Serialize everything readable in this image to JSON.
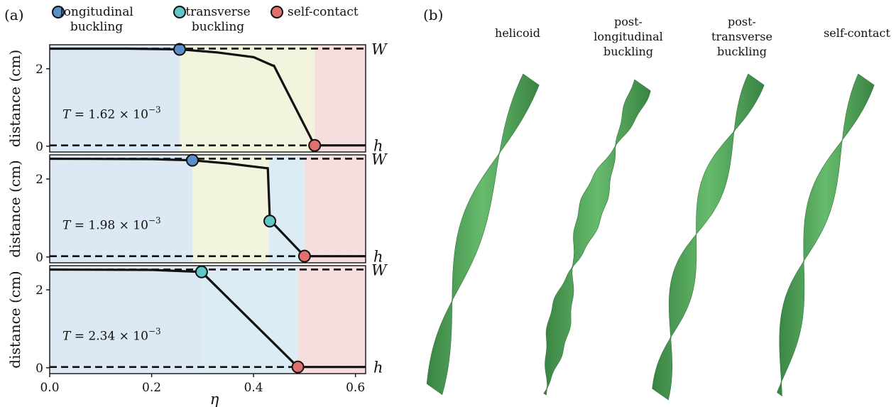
{
  "panel_labels": {
    "a": "(a)",
    "b": "(b)"
  },
  "legend": [
    {
      "label_lines": [
        "longitudinal",
        "buckling"
      ],
      "color": "#5b8fc9"
    },
    {
      "label_lines": [
        "transverse",
        "buckling"
      ],
      "color": "#5fc7c7"
    },
    {
      "label_lines": [
        "self-contact"
      ],
      "color": "#e07070"
    }
  ],
  "region_colors": {
    "blue": "#dce9f4",
    "yellow": "#f3f4dd",
    "cyan": "#dcecf5",
    "red": "#f6dede"
  },
  "axes": {
    "ylabel": "distance (cm)",
    "xlabel": "η",
    "xticks": [
      "0.0",
      "0.2",
      "0.4",
      "0.6"
    ],
    "yticks": [
      "0",
      "2"
    ],
    "W_label": "W",
    "h_label": "h"
  },
  "chart_data": [
    {
      "type": "line",
      "T_prefix": "T = 1.62 × 10",
      "T_exp": "−3",
      "xlim": [
        0,
        0.62
      ],
      "ylim": [
        -0.15,
        2.62
      ],
      "W": 2.52,
      "h": 0.02,
      "regions": [
        {
          "from": 0,
          "to": 0.255,
          "color": "blue"
        },
        {
          "from": 0.255,
          "to": 0.52,
          "color": "yellow"
        },
        {
          "from": 0.52,
          "to": 0.62,
          "color": "red"
        }
      ],
      "curve": [
        [
          0,
          2.52
        ],
        [
          0.15,
          2.52
        ],
        [
          0.255,
          2.5
        ],
        [
          0.33,
          2.42
        ],
        [
          0.4,
          2.3
        ],
        [
          0.438,
          2.08
        ],
        [
          0.44,
          2.08
        ],
        [
          0.52,
          0.02
        ],
        [
          0.62,
          0.02
        ]
      ],
      "markers": [
        {
          "x": 0.255,
          "y": 2.5,
          "type": "longitudinal"
        },
        {
          "x": 0.52,
          "y": 0.02,
          "type": "self-contact"
        }
      ]
    },
    {
      "type": "line",
      "T_prefix": "T = 1.98 × 10",
      "T_exp": "−3",
      "xlim": [
        0,
        0.62
      ],
      "ylim": [
        -0.15,
        2.62
      ],
      "W": 2.52,
      "h": 0.02,
      "regions": [
        {
          "from": 0,
          "to": 0.28,
          "color": "blue"
        },
        {
          "from": 0.28,
          "to": 0.43,
          "color": "yellow"
        },
        {
          "from": 0.43,
          "to": 0.5,
          "color": "cyan"
        },
        {
          "from": 0.5,
          "to": 0.62,
          "color": "red"
        }
      ],
      "curve": [
        [
          0,
          2.52
        ],
        [
          0.2,
          2.51
        ],
        [
          0.28,
          2.48
        ],
        [
          0.35,
          2.4
        ],
        [
          0.425,
          2.28
        ],
        [
          0.428,
          2.28
        ],
        [
          0.432,
          0.95
        ],
        [
          0.5,
          0.02
        ],
        [
          0.62,
          0.02
        ]
      ],
      "markers": [
        {
          "x": 0.28,
          "y": 2.48,
          "type": "longitudinal"
        },
        {
          "x": 0.432,
          "y": 0.92,
          "type": "transverse"
        },
        {
          "x": 0.5,
          "y": 0.02,
          "type": "self-contact"
        }
      ]
    },
    {
      "type": "line",
      "T_prefix": "T = 2.34 × 10",
      "T_exp": "−3",
      "xlim": [
        0,
        0.62
      ],
      "ylim": [
        -0.15,
        2.62
      ],
      "W": 2.52,
      "h": 0.02,
      "regions": [
        {
          "from": 0,
          "to": 0.298,
          "color": "blue"
        },
        {
          "from": 0.298,
          "to": 0.487,
          "color": "cyan"
        },
        {
          "from": 0.487,
          "to": 0.62,
          "color": "red"
        }
      ],
      "curve": [
        [
          0,
          2.52
        ],
        [
          0.2,
          2.51
        ],
        [
          0.298,
          2.46
        ],
        [
          0.487,
          0.02
        ],
        [
          0.62,
          0.02
        ]
      ],
      "markers": [
        {
          "x": 0.298,
          "y": 2.46,
          "type": "transverse"
        },
        {
          "x": 0.487,
          "y": 0.02,
          "type": "self-contact"
        }
      ]
    }
  ],
  "ribbons": {
    "labels": [
      [
        "helicoid"
      ],
      [
        "post-",
        "longitudinal",
        "buckling"
      ],
      [
        "post-",
        "transverse",
        "buckling"
      ],
      [
        "self-contact"
      ]
    ],
    "color": "#3f9a4a"
  }
}
